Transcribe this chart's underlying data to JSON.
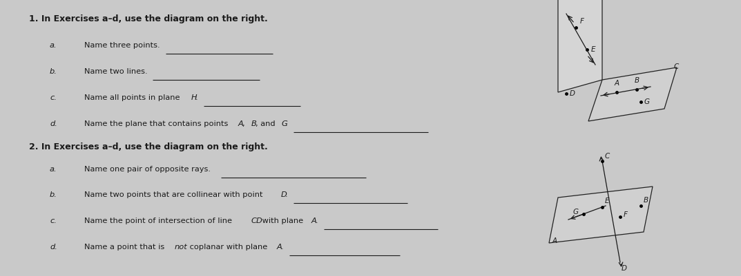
{
  "bg_color": "#c9c9c9",
  "text_color": "#1a1a1a",
  "fig_width": 10.73,
  "fig_height": 4.01,
  "font_title": 9.0,
  "font_body": 8.2,
  "font_label": 7.5,
  "section1": {
    "title": "1. In Exercises a–d, use the diagram on the right.",
    "items": [
      {
        "label": "a.",
        "text_parts": [
          {
            "t": "Name three points.",
            "i": false
          }
        ],
        "line_after": true
      },
      {
        "label": "b.",
        "text_parts": [
          {
            "t": "Name two lines.",
            "i": false
          }
        ],
        "line_after": true
      },
      {
        "label": "c.",
        "text_parts": [
          {
            "t": "Name all points in plane ",
            "i": false
          },
          {
            "t": "H",
            "i": true
          },
          {
            "t": ".",
            "i": false
          }
        ],
        "line_after": true
      },
      {
        "label": "d.",
        "text_parts": [
          {
            "t": "Name the plane that contains points ",
            "i": false
          },
          {
            "t": "A",
            "i": true
          },
          {
            "t": ", ",
            "i": false
          },
          {
            "t": "B",
            "i": true
          },
          {
            "t": ", and ",
            "i": false
          },
          {
            "t": "G",
            "i": true
          },
          {
            "t": ".",
            "i": false
          }
        ],
        "line_after": true
      }
    ]
  },
  "section2": {
    "title": "2. In Exercises a–d, use the diagram on the right.",
    "items": [
      {
        "label": "a.",
        "text_parts": [
          {
            "t": "Name one pair of opposite rays.",
            "i": false
          }
        ],
        "line_after": true
      },
      {
        "label": "b.",
        "text_parts": [
          {
            "t": "Name two points that are collinear with point ",
            "i": false
          },
          {
            "t": "D",
            "i": true
          },
          {
            "t": ".",
            "i": false
          }
        ],
        "line_after": true
      },
      {
        "label": "c.",
        "text_parts": [
          {
            "t": "Name the point of intersection of line ",
            "i": false
          },
          {
            "t": "CD",
            "i": true
          },
          {
            "t": " with plane ",
            "i": false
          },
          {
            "t": "A",
            "i": true
          },
          {
            "t": ".",
            "i": false
          }
        ],
        "line_after": true
      },
      {
        "label": "d.",
        "text_parts": [
          {
            "t": "Name a point that is ",
            "i": false
          },
          {
            "t": "not",
            "i": true
          },
          {
            "t": " coplanar with plane ",
            "i": false
          },
          {
            "t": "A",
            "i": true
          },
          {
            "t": ".",
            "i": false
          }
        ],
        "line_after": true
      }
    ]
  }
}
